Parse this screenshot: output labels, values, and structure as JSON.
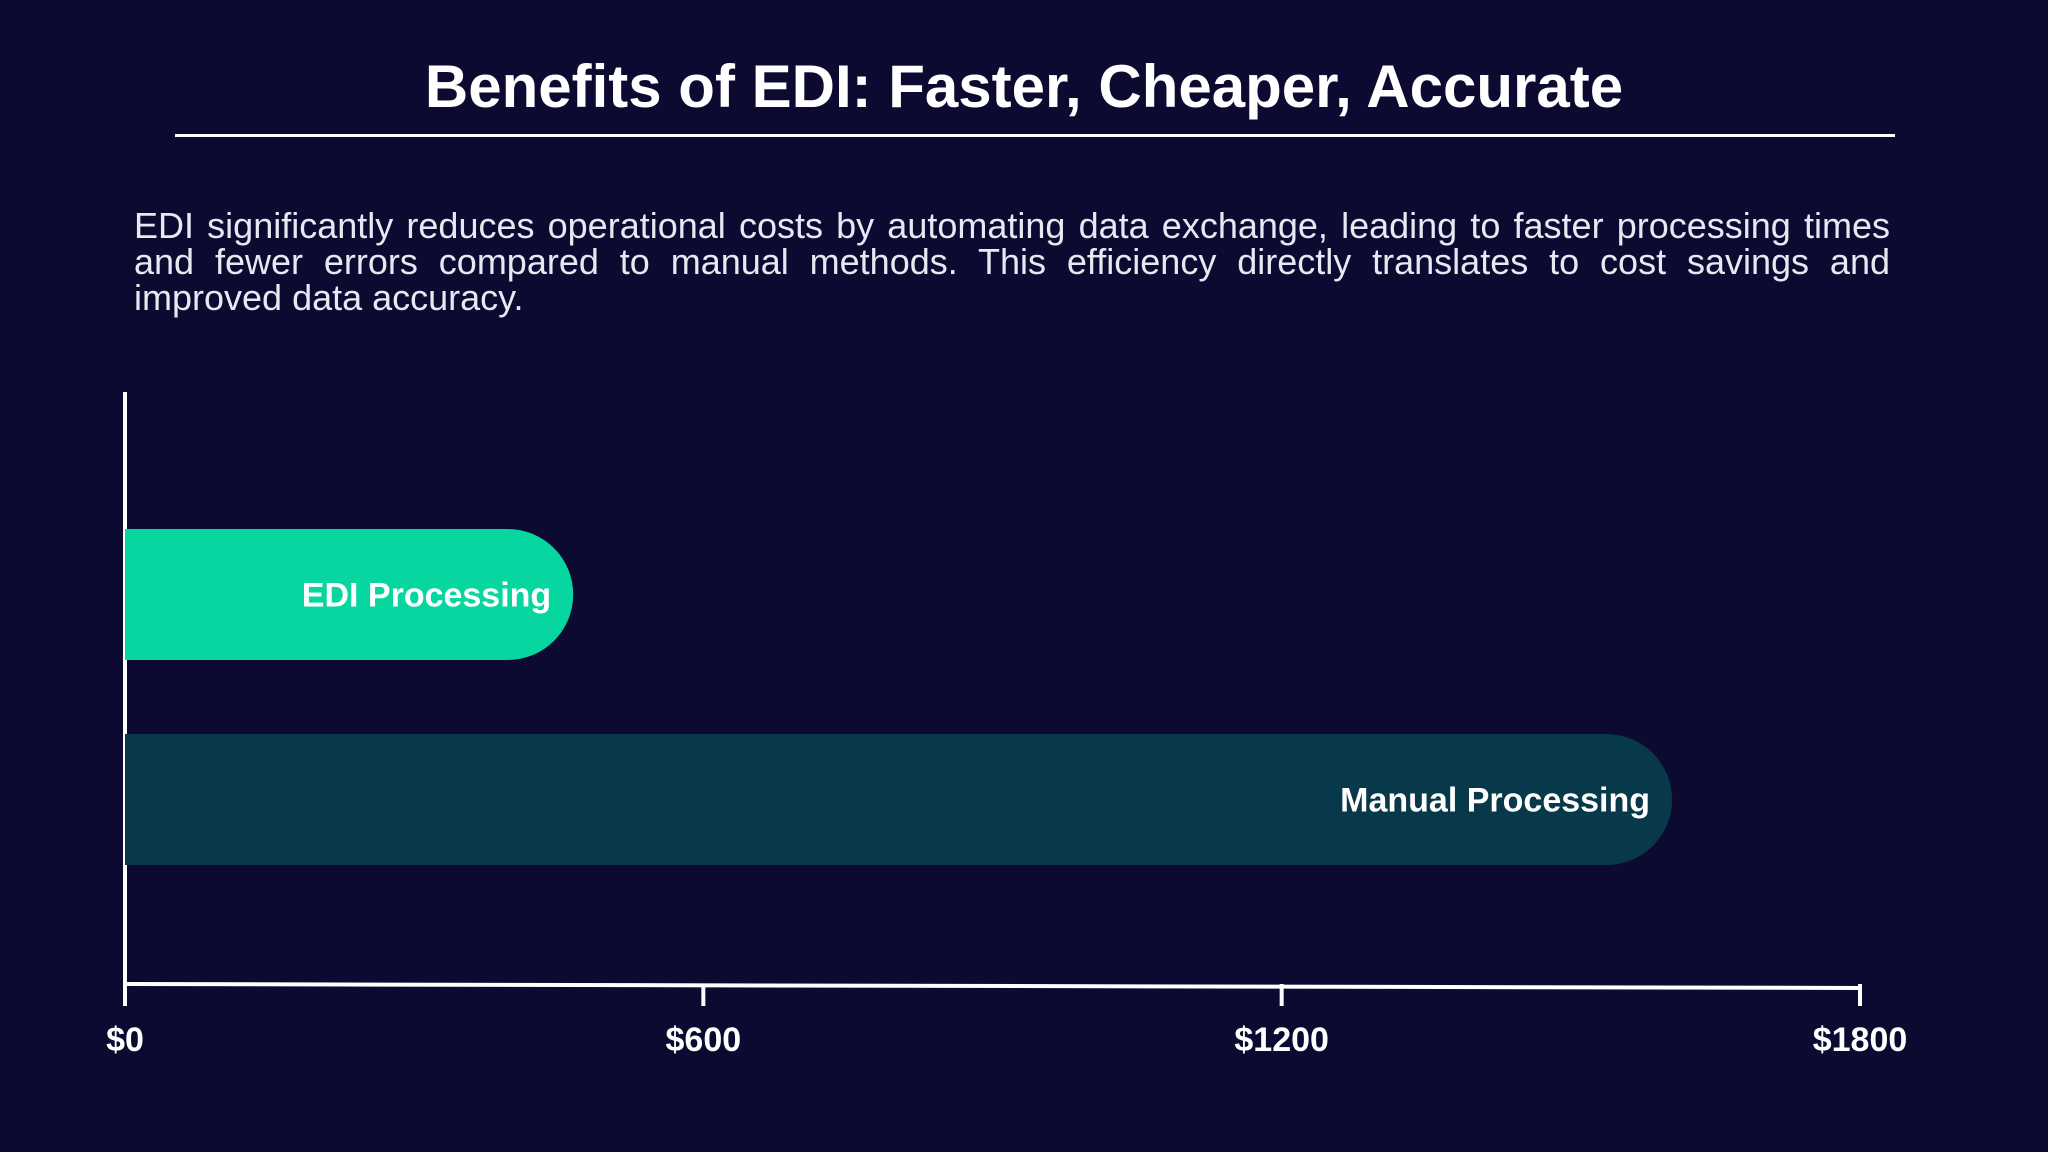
{
  "chart_data": {
    "type": "bar",
    "orientation": "horizontal",
    "title": "Benefits of EDI: Faster, Cheaper, Accurate",
    "subtitle": "EDI significantly reduces operational costs by automating data exchange, leading to faster processing times and fewer errors compared to manual methods. This efficiency directly translates to cost savings and improved data accuracy.",
    "categories": [
      "EDI Processing",
      "Manual Processing"
    ],
    "values": [
      465,
      1605
    ],
    "colors": [
      "#07d6a0",
      "#08394b"
    ],
    "xlim": [
      0,
      1800
    ],
    "xticks": [
      {
        "value": 0,
        "label": "$0"
      },
      {
        "value": 600,
        "label": "$600"
      },
      {
        "value": 1200,
        "label": "$1200"
      },
      {
        "value": 1800,
        "label": "$1800"
      }
    ]
  }
}
